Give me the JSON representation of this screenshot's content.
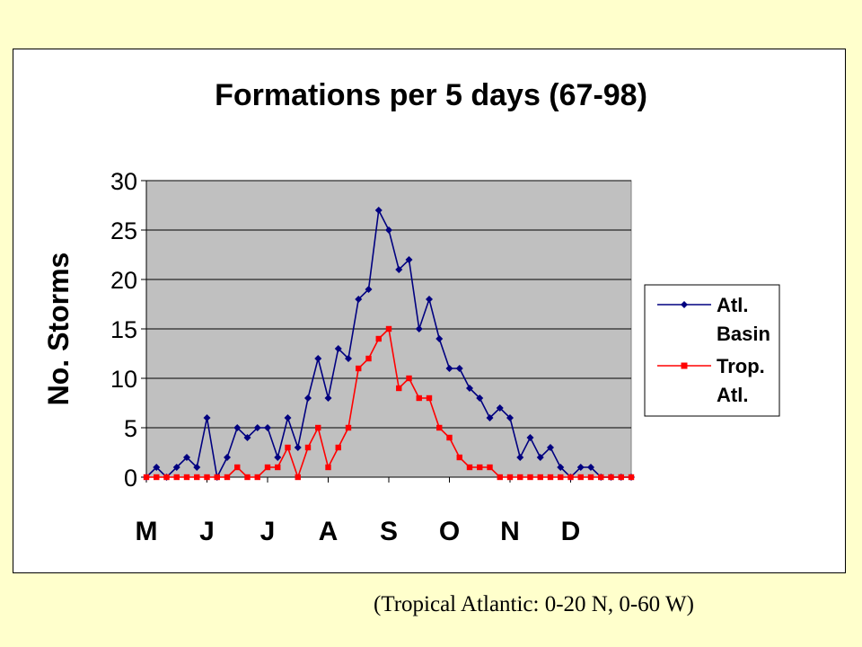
{
  "caption": "(Tropical Atlantic: 0-20 N, 0-60 W)",
  "chart_data": {
    "type": "line",
    "title": "Formations per 5 days (67-98)",
    "ylabel": "No. Storms",
    "xlabel": "",
    "ylim": [
      0,
      30
    ],
    "yticks": [
      0,
      5,
      10,
      15,
      20,
      25,
      30
    ],
    "xlim": [
      0,
      48
    ],
    "month_labels": [
      "M",
      "J",
      "J",
      "A",
      "S",
      "O",
      "N",
      "D"
    ],
    "month_ticks": [
      0,
      6,
      12,
      18,
      24,
      30,
      36,
      42
    ],
    "grid": true,
    "legend_position": "right",
    "plot_background": "#c0c0c0",
    "x": [
      0,
      1,
      2,
      3,
      4,
      5,
      6,
      7,
      8,
      9,
      10,
      11,
      12,
      13,
      14,
      15,
      16,
      17,
      18,
      19,
      20,
      21,
      22,
      23,
      24,
      25,
      26,
      27,
      28,
      29,
      30,
      31,
      32,
      33,
      34,
      35,
      36,
      37,
      38,
      39,
      40,
      41,
      42,
      43,
      44,
      45,
      46,
      47,
      48
    ],
    "series": [
      {
        "name": "Atl. Basin",
        "legend_lines": [
          "Atl.",
          "Basin"
        ],
        "color": "#000080",
        "marker": "diamond",
        "values": [
          0,
          1,
          0,
          1,
          2,
          1,
          6,
          0,
          2,
          5,
          4,
          5,
          5,
          2,
          6,
          3,
          8,
          12,
          8,
          13,
          12,
          18,
          19,
          27,
          25,
          21,
          22,
          15,
          18,
          14,
          11,
          11,
          9,
          8,
          6,
          7,
          6,
          2,
          4,
          2,
          3,
          1,
          0,
          1,
          1,
          0,
          0,
          0,
          0
        ]
      },
      {
        "name": "Trop. Atl.",
        "legend_lines": [
          "Trop.",
          "Atl."
        ],
        "color": "#ff0000",
        "marker": "square",
        "values": [
          0,
          0,
          0,
          0,
          0,
          0,
          0,
          0,
          0,
          1,
          0,
          0,
          1,
          1,
          3,
          0,
          3,
          5,
          1,
          3,
          5,
          11,
          12,
          14,
          15,
          9,
          10,
          8,
          8,
          5,
          4,
          2,
          1,
          1,
          1,
          0,
          0,
          0,
          0,
          0,
          0,
          0,
          0,
          0,
          0,
          0,
          0,
          0,
          0
        ]
      }
    ]
  }
}
